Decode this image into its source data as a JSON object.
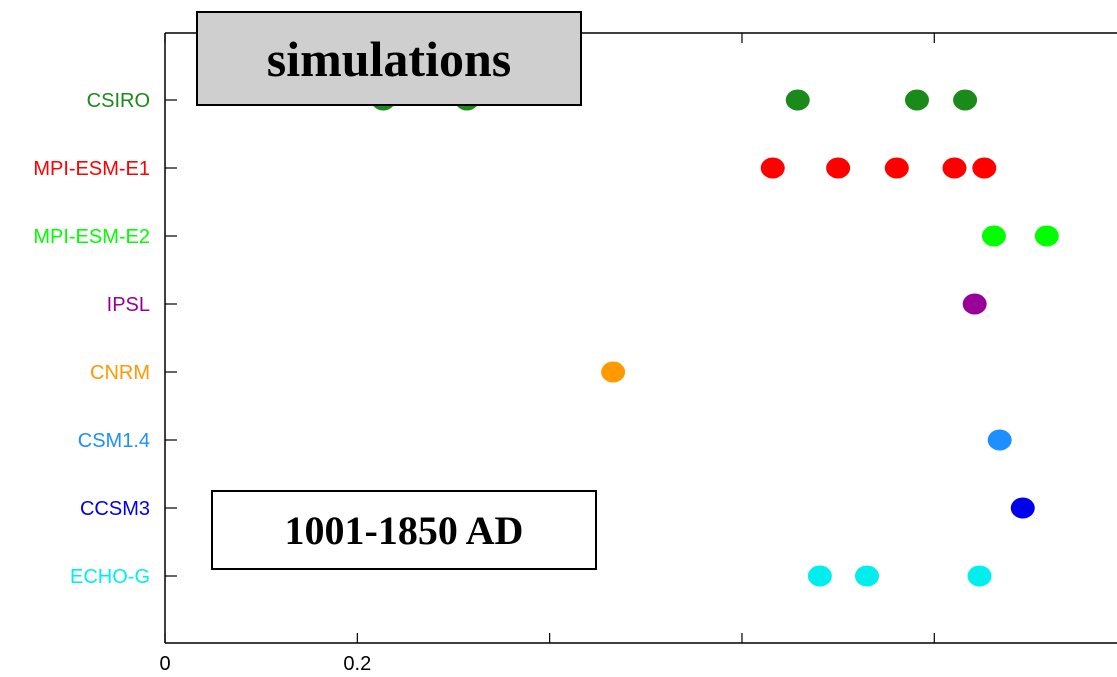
{
  "annotations": {
    "simulations_label": "simulations",
    "period_label": "1001-1850 AD"
  },
  "chart_data": {
    "type": "scatter",
    "title": "",
    "xlabel": "",
    "ylabel": "",
    "xlim": [
      0,
      0.99
    ],
    "x_tick_labels": [
      {
        "value": 0,
        "label": "0"
      },
      {
        "value": 0.2,
        "label": "0.2"
      }
    ],
    "x_ticks_unlabeled": [
      0.4,
      0.6,
      0.8
    ],
    "grid": false,
    "categories": [
      "CSIRO",
      "MPI-ESM-E1",
      "MPI-ESM-E2",
      "IPSL",
      "CNRM",
      "CSM1.4",
      "CCSM3",
      "ECHO-G"
    ],
    "series": [
      {
        "label": "CSIRO",
        "color": "#1a8a1a",
        "x": [
          0.227,
          0.314,
          0.658,
          0.782,
          0.832
        ]
      },
      {
        "label": "MPI-ESM-E1",
        "color": "#ff0000",
        "x": [
          0.632,
          0.7,
          0.761,
          0.821,
          0.852
        ]
      },
      {
        "label": "MPI-ESM-E2",
        "color": "#00ff00",
        "x": [
          0.862,
          0.917
        ]
      },
      {
        "label": "IPSL",
        "color": "#990099",
        "x": [
          0.842
        ]
      },
      {
        "label": "CNRM",
        "color": "#ff9900",
        "x": [
          0.466
        ]
      },
      {
        "label": "CSM1.4",
        "color": "#1e8fff",
        "x": [
          0.868
        ]
      },
      {
        "label": "CCSM3",
        "color": "#0000ee",
        "x": [
          0.892
        ]
      },
      {
        "label": "ECHO-G",
        "color": "#00eeee",
        "x": [
          0.681,
          0.73,
          0.847
        ]
      }
    ]
  }
}
